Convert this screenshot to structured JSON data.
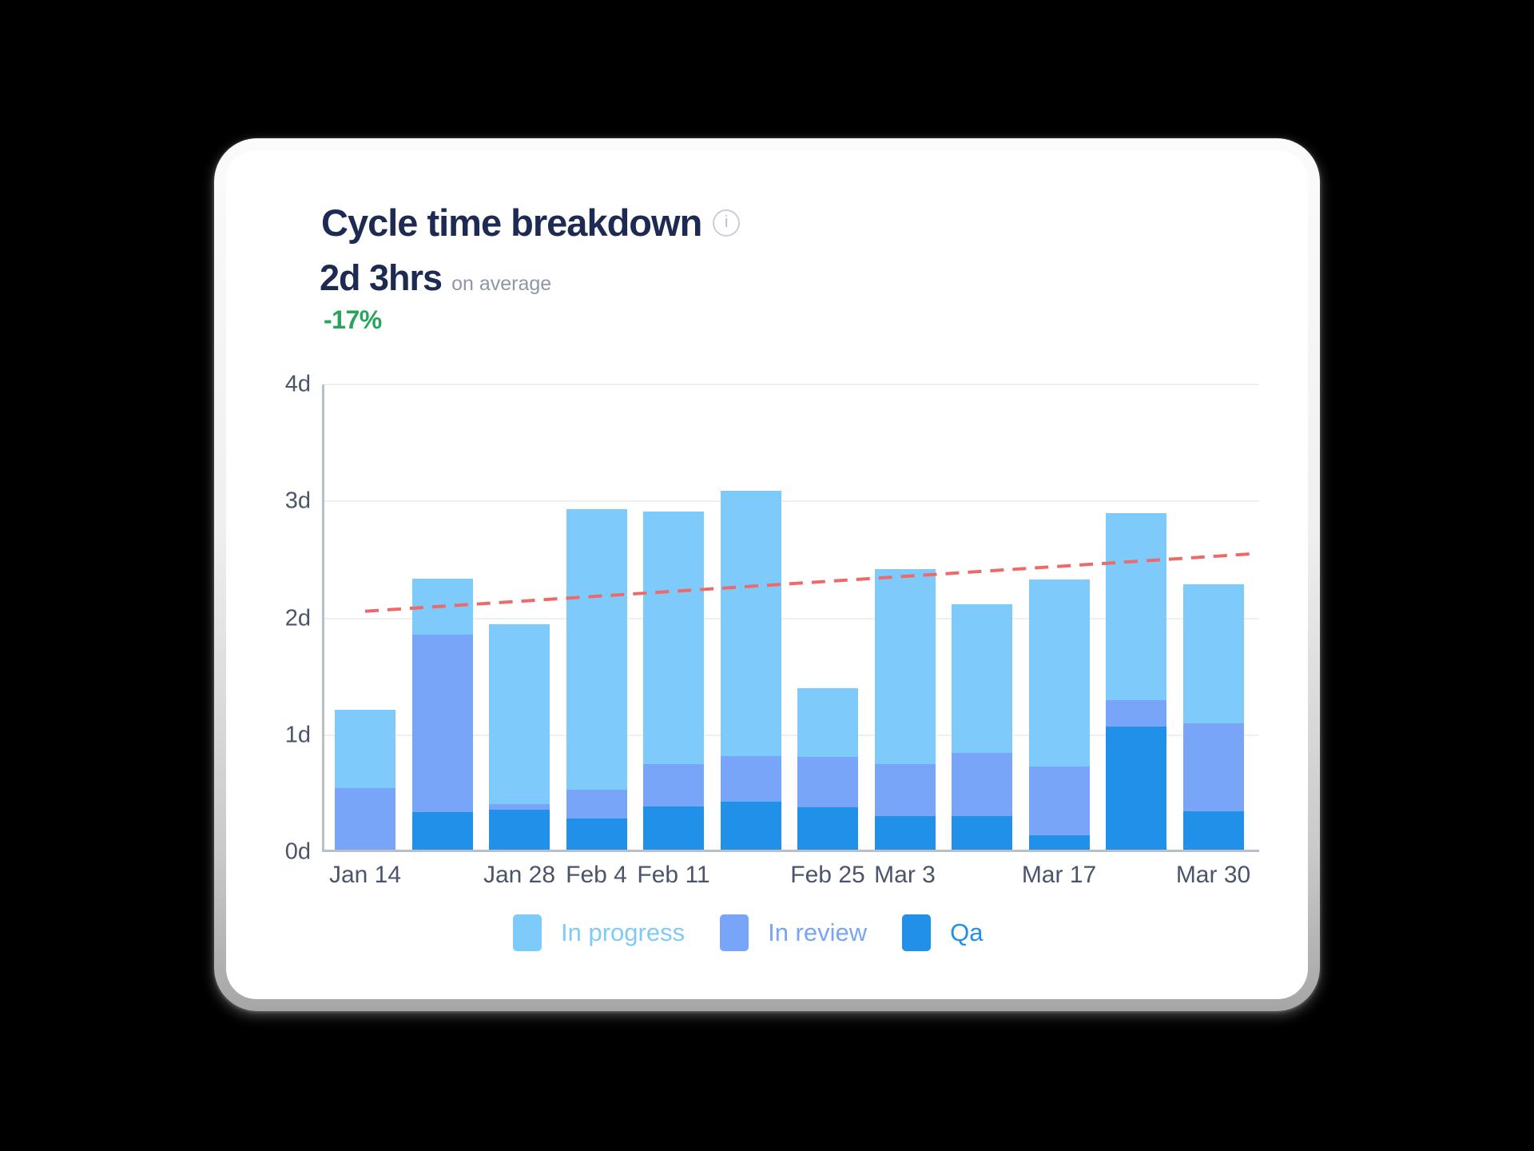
{
  "page": {
    "background": "#000000"
  },
  "card": {
    "title": "Cycle time breakdown",
    "info_icon": "i",
    "average_value": "2d 3hrs",
    "average_suffix": "on average",
    "delta": "-17%",
    "delta_color": "#27a55c",
    "title_color": "#1d2a52"
  },
  "chart_data": {
    "type": "bar",
    "stacked": true,
    "unit": "days",
    "categories": [
      "Jan 14",
      "",
      "Jan 28",
      "Feb 4",
      "Feb 11",
      "",
      "Feb 25",
      "Mar 3",
      "",
      "Mar 17",
      "",
      "Mar 30"
    ],
    "series": [
      {
        "name": "Qa",
        "color": "#2190e9",
        "values": [
          0,
          0.32,
          0.34,
          0.27,
          0.37,
          0.41,
          0.36,
          0.29,
          0.285,
          0.12,
          1.05,
          0.33
        ]
      },
      {
        "name": "In review",
        "color": "#78a5f7",
        "values": [
          0.53,
          1.52,
          0.05,
          0.24,
          0.36,
          0.39,
          0.43,
          0.44,
          0.545,
          0.59,
          0.23,
          0.75
        ]
      },
      {
        "name": "In progress",
        "color": "#7ecbfb",
        "values": [
          0.67,
          0.48,
          1.54,
          2.4,
          2.16,
          2.27,
          0.59,
          1.67,
          1.27,
          1.6,
          1.6,
          1.19
        ]
      }
    ],
    "legend_order": [
      "In progress",
      "In review",
      "Qa"
    ],
    "ylabels": [
      "0d",
      "1d",
      "2d",
      "3d",
      "4d"
    ],
    "ylim": [
      0,
      4
    ],
    "grid": true,
    "trend": {
      "style": "dashed",
      "color": "#ee6a6a",
      "start_value": 2.06,
      "end_value": 2.55
    }
  }
}
